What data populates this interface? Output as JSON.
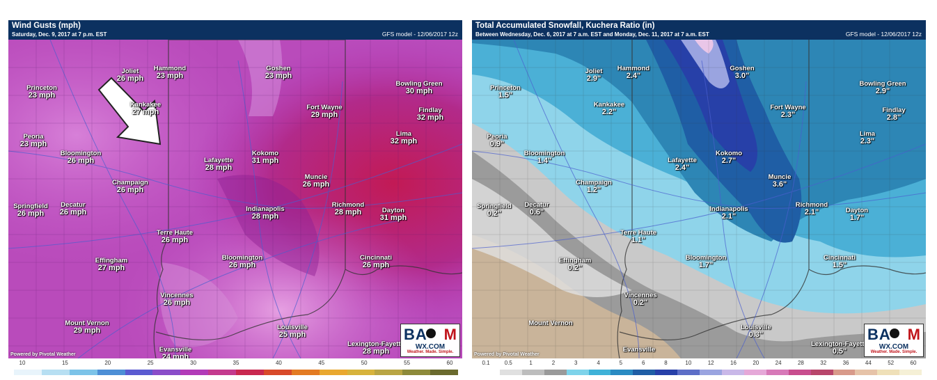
{
  "left": {
    "title": "Wind Gusts (mph)",
    "subtitle": "Saturday, Dec. 9, 2017 at 7 p.m. EST",
    "model": "GFS model - 12/06/2017 12z",
    "powered": "Powered by Pivotal Weather",
    "colorbar": [
      "10",
      "15",
      "20",
      "25",
      "30",
      "35",
      "40",
      "45",
      "50",
      "55",
      "60"
    ],
    "cities": [
      {
        "name": "Joliet",
        "value": "26 mph"
      },
      {
        "name": "Hammond",
        "value": "23 mph"
      },
      {
        "name": "Goshen",
        "value": "23 mph"
      },
      {
        "name": "Princeton",
        "value": "23 mph"
      },
      {
        "name": "Kankakee",
        "value": "27 mph"
      },
      {
        "name": "Fort Wayne",
        "value": "29 mph"
      },
      {
        "name": "Bowling Green",
        "value": "30 mph"
      },
      {
        "name": "Findlay",
        "value": "32 mph"
      },
      {
        "name": "Lima",
        "value": "32 mph"
      },
      {
        "name": "Peoria",
        "value": "23 mph"
      },
      {
        "name": "Bloomington",
        "value": "26 mph"
      },
      {
        "name": "Kokomo",
        "value": "31 mph"
      },
      {
        "name": "Lafayette",
        "value": "28 mph"
      },
      {
        "name": "Champaign",
        "value": "26 mph"
      },
      {
        "name": "Muncie",
        "value": "26 mph"
      },
      {
        "name": "Springfield",
        "value": "26 mph"
      },
      {
        "name": "Decatur",
        "value": "26 mph"
      },
      {
        "name": "Richmond",
        "value": "28 mph"
      },
      {
        "name": "Indianapolis",
        "value": "28 mph"
      },
      {
        "name": "Dayton",
        "value": "31 mph"
      },
      {
        "name": "Terre Haute",
        "value": "26 mph"
      },
      {
        "name": "Bloomington",
        "value": "26 mph"
      },
      {
        "name": "Effingham",
        "value": "27 mph"
      },
      {
        "name": "Cincinnati",
        "value": "26 mph"
      },
      {
        "name": "Vincennes",
        "value": "26 mph"
      },
      {
        "name": "Mount Vernon",
        "value": "29 mph"
      },
      {
        "name": "Louisville",
        "value": "25 mph"
      },
      {
        "name": "Lexington-Fayette",
        "value": "28 mph"
      },
      {
        "name": "Evansville",
        "value": "24 mph"
      }
    ]
  },
  "right": {
    "title": "Total Accumulated Snowfall, Kuchera Ratio (in)",
    "subtitle": "Between Wednesday, Dec. 6, 2017 at 7 a.m. EST and Monday, Dec. 11, 2017 at 7 a.m. EST",
    "model": "GFS model - 12/06/2017 12z",
    "powered": "Powered by Pivotal Weather",
    "colorbar": [
      "0.1",
      "0.5",
      "1",
      "2",
      "3",
      "4",
      "5",
      "6",
      "8",
      "10",
      "12",
      "16",
      "20",
      "24",
      "28",
      "32",
      "36",
      "44",
      "52",
      "60"
    ],
    "cities": [
      {
        "name": "Joliet",
        "value": "2.9\""
      },
      {
        "name": "Hammond",
        "value": "2.4\""
      },
      {
        "name": "Goshen",
        "value": "3.0\""
      },
      {
        "name": "Princeton",
        "value": "1.5\""
      },
      {
        "name": "Kankakee",
        "value": "2.2\""
      },
      {
        "name": "Fort Wayne",
        "value": "2.3\""
      },
      {
        "name": "Bowling Green",
        "value": "2.9\""
      },
      {
        "name": "Findlay",
        "value": "2.8\""
      },
      {
        "name": "Lima",
        "value": "2.3\""
      },
      {
        "name": "Peoria",
        "value": "0.9\""
      },
      {
        "name": "Bloomington",
        "value": "1.4\""
      },
      {
        "name": "Kokomo",
        "value": "2.7\""
      },
      {
        "name": "Lafayette",
        "value": "2.4\""
      },
      {
        "name": "Champaign",
        "value": "1.2\""
      },
      {
        "name": "Muncie",
        "value": "3.6\""
      },
      {
        "name": "Springfield",
        "value": "0.2\""
      },
      {
        "name": "Decatur",
        "value": "0.6\""
      },
      {
        "name": "Richmond",
        "value": "2.1\""
      },
      {
        "name": "Indianapolis",
        "value": "2.1\""
      },
      {
        "name": "Dayton",
        "value": "1.7\""
      },
      {
        "name": "Terre Haute",
        "value": "1.1\""
      },
      {
        "name": "Bloomington",
        "value": "1.7\""
      },
      {
        "name": "Effingham",
        "value": "0.2\""
      },
      {
        "name": "Cincinnati",
        "value": "1.5\""
      },
      {
        "name": "Vincennes",
        "value": "0.2\""
      },
      {
        "name": "Mount Vernon",
        "value": ""
      },
      {
        "name": "Louisville",
        "value": "0.3\""
      },
      {
        "name": "Lexington-Fayette",
        "value": "0.5\""
      },
      {
        "name": "Evansville",
        "value": ""
      }
    ]
  },
  "logo": {
    "line1": "BAM",
    "line2": "WX.COM",
    "tagline": "Weather. Made. Simple."
  },
  "colors": {
    "header": "#0c3160",
    "wind_base": "#b33bb5",
    "snow_base": "#3a8fc0"
  }
}
